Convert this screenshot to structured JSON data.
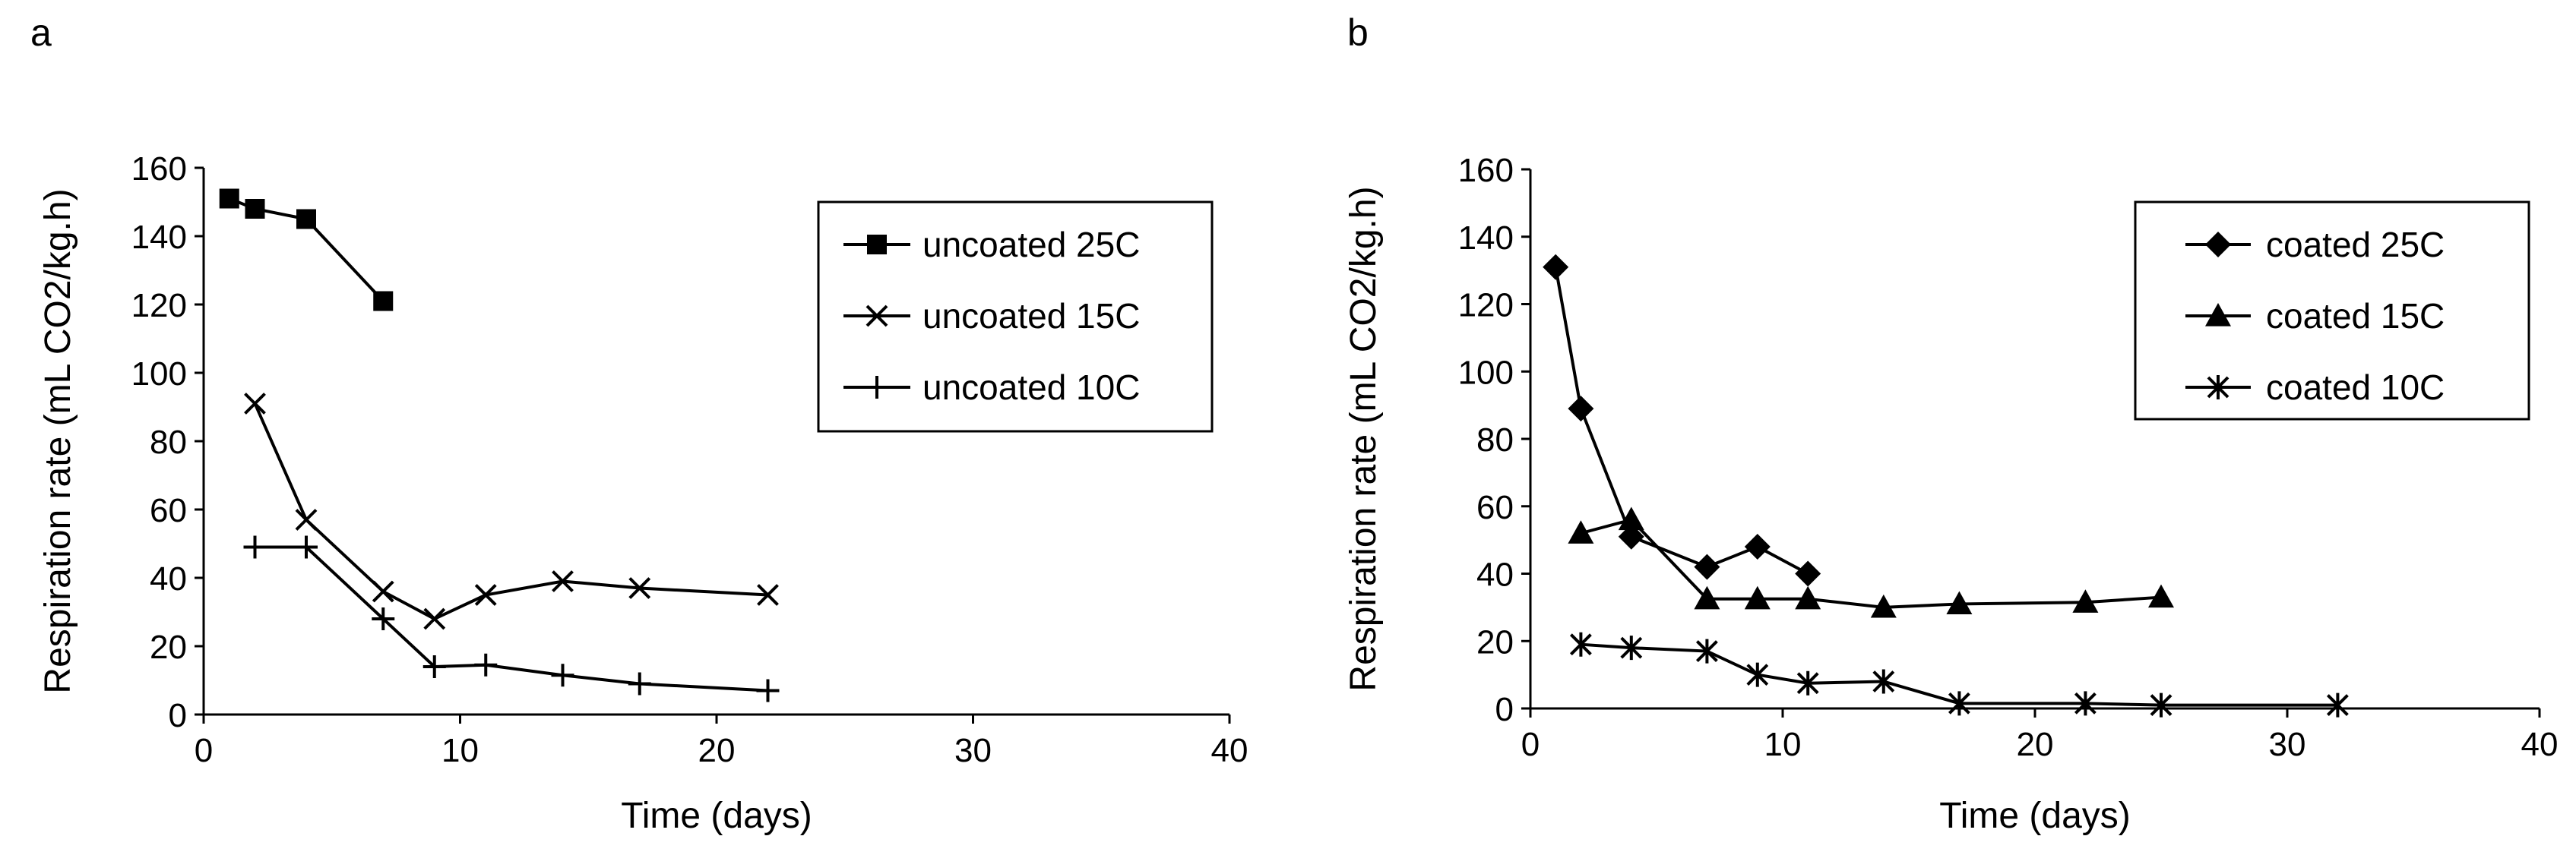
{
  "chart_data": [
    {
      "panel_label": "a",
      "type": "line",
      "xlabel": "Time (days)",
      "ylabel": "Respiration rate (mL CO2/kg.h)",
      "xlim": [
        0,
        40
      ],
      "ylim": [
        0,
        160
      ],
      "x_ticks": [
        0,
        10,
        20,
        30,
        40
      ],
      "y_ticks": [
        0,
        20,
        40,
        60,
        80,
        100,
        120,
        140,
        160
      ],
      "grid": false,
      "legend_position": "top-right",
      "series": [
        {
          "name": "uncoated 25C",
          "marker": "square",
          "points": [
            [
              1,
              151
            ],
            [
              2,
              148
            ],
            [
              4,
              145
            ],
            [
              7,
              121
            ]
          ]
        },
        {
          "name": "uncoated 15C",
          "marker": "x",
          "points": [
            [
              2,
              91
            ],
            [
              4,
              57
            ],
            [
              7,
              36
            ],
            [
              9,
              28
            ],
            [
              11,
              35
            ],
            [
              14,
              39
            ],
            [
              17,
              37
            ],
            [
              22,
              35
            ]
          ]
        },
        {
          "name": "uncoated 10C",
          "marker": "plus",
          "points": [
            [
              2,
              49
            ],
            [
              4,
              49
            ],
            [
              7,
              28
            ],
            [
              9,
              14
            ],
            [
              11,
              14.5
            ],
            [
              14,
              11.5
            ],
            [
              17,
              9
            ],
            [
              22,
              7
            ]
          ]
        }
      ]
    },
    {
      "panel_label": "b",
      "type": "line",
      "xlabel": "Time (days)",
      "ylabel": "Respiration rate (mL CO2/kg.h)",
      "xlim": [
        0,
        40
      ],
      "ylim": [
        0,
        160
      ],
      "x_ticks": [
        0,
        10,
        20,
        30,
        40
      ],
      "y_ticks": [
        0,
        20,
        40,
        60,
        80,
        100,
        120,
        140,
        160
      ],
      "grid": false,
      "legend_position": "top-right",
      "series": [
        {
          "name": "coated 25C",
          "marker": "diamond",
          "points": [
            [
              1,
              131
            ],
            [
              2,
              89
            ],
            [
              4,
              51
            ],
            [
              7,
              42
            ],
            [
              9,
              48
            ],
            [
              11,
              40
            ]
          ]
        },
        {
          "name": "coated 15C",
          "marker": "triangle",
          "points": [
            [
              2,
              52
            ],
            [
              4,
              56
            ],
            [
              7,
              32.5
            ],
            [
              9,
              32.5
            ],
            [
              11,
              32.5
            ],
            [
              14,
              30
            ],
            [
              17,
              31
            ],
            [
              22,
              31.5
            ],
            [
              25,
              33
            ]
          ]
        },
        {
          "name": "coated 10C",
          "marker": "asterisk",
          "points": [
            [
              2,
              19
            ],
            [
              4,
              18
            ],
            [
              7,
              17
            ],
            [
              9,
              10
            ],
            [
              11,
              7.5
            ],
            [
              14,
              8
            ],
            [
              17,
              1.5
            ],
            [
              22,
              1.5
            ],
            [
              25,
              1
            ],
            [
              32,
              1
            ]
          ]
        }
      ]
    }
  ]
}
